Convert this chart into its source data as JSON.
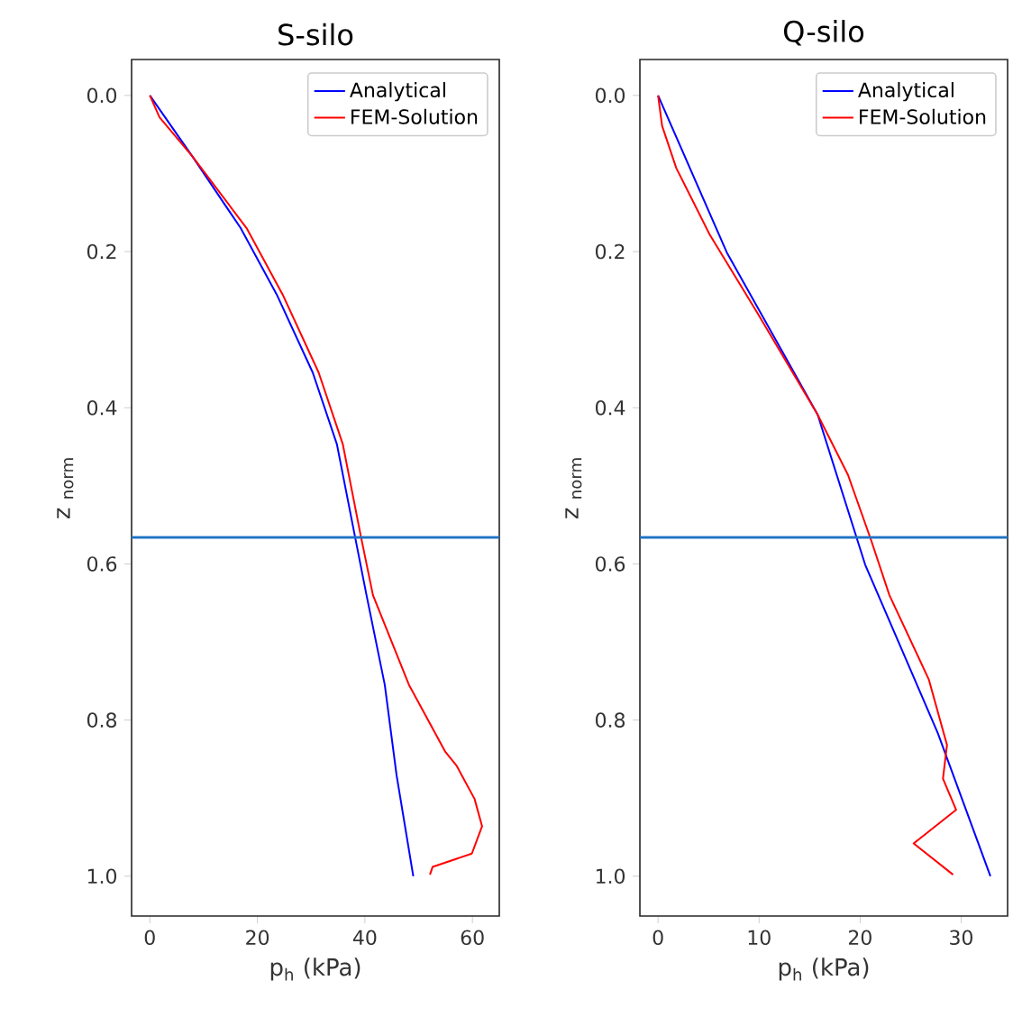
{
  "chart_data": [
    {
      "type": "line",
      "title": "S-silo",
      "xlabel": "p$_{h}$ (kPa)",
      "ylabel": "z $_{norm}$",
      "xlim": [
        -3.4,
        65
      ],
      "xticks": [
        0,
        20,
        40,
        60
      ],
      "ylim": [
        1.051,
        -0.046
      ],
      "yticks": [
        {
          "value": 0,
          "label": "0.0"
        },
        {
          "value": 0.2,
          "label": "0.2"
        },
        {
          "value": 0.4,
          "label": "0.4"
        },
        {
          "value": 0.6,
          "label": "0.6"
        },
        {
          "value": 0.8,
          "label": "0.8"
        },
        {
          "value": 1.0,
          "label": "1.0"
        }
      ],
      "legend": "top right",
      "grid": false,
      "ref_lines": [
        {
          "axis": "y",
          "value": 0.566,
          "color": "#1f72c4"
        }
      ],
      "series": [
        {
          "name": "Analytical",
          "color": "#0000ff",
          "x": [
            0,
            7.9,
            16.9,
            23.6,
            30.3,
            34.8,
            38.1,
            40.3,
            43.7,
            45.9,
            49.0
          ],
          "values": [
            0,
            0.078,
            0.17,
            0.255,
            0.355,
            0.447,
            0.563,
            0.64,
            0.755,
            0.871,
            1.0
          ]
        },
        {
          "name": "FEM-Solution",
          "color": "#ff0000",
          "x": [
            0,
            1.8,
            7.9,
            18.0,
            24.7,
            31.4,
            35.9,
            39.2,
            41.5,
            48.2,
            54.9,
            57.1,
            60.4,
            61.8,
            59.9,
            52.6,
            52.1
          ],
          "values": [
            0,
            0.028,
            0.078,
            0.17,
            0.255,
            0.355,
            0.447,
            0.563,
            0.64,
            0.755,
            0.84,
            0.859,
            0.901,
            0.936,
            0.971,
            0.988,
            0.998
          ]
        }
      ]
    },
    {
      "type": "line",
      "title": "Q-silo",
      "xlabel": "p$_{h}$ (kPa)",
      "ylabel": "z $_{norm}$",
      "xlim": [
        -1.8,
        34.6
      ],
      "xticks": [
        0,
        10,
        20,
        30
      ],
      "ylim": [
        1.051,
        -0.046
      ],
      "yticks": [
        {
          "value": 0,
          "label": "0.0"
        },
        {
          "value": 0.2,
          "label": "0.2"
        },
        {
          "value": 0.4,
          "label": "0.4"
        },
        {
          "value": 0.6,
          "label": "0.6"
        },
        {
          "value": 0.8,
          "label": "0.8"
        },
        {
          "value": 1.0,
          "label": "1.0"
        }
      ],
      "legend": "top right",
      "grid": false,
      "ref_lines": [
        {
          "axis": "y",
          "value": 0.566,
          "color": "#1f72c4"
        }
      ],
      "series": [
        {
          "name": "Analytical",
          "color": "#0000ff",
          "x": [
            0,
            6.8,
            15.8,
            20.5,
            27.7,
            32.9
          ],
          "values": [
            0,
            0.201,
            0.409,
            0.601,
            0.817,
            1.0
          ]
        },
        {
          "name": "FEM-Solution",
          "color": "#ff0000",
          "x": [
            0,
            0.4,
            1.8,
            5.1,
            9.8,
            15.8,
            18.8,
            21.1,
            22.9,
            26.8,
            28.6,
            28.2,
            29.5,
            25.3,
            29.2
          ],
          "values": [
            0,
            0.039,
            0.093,
            0.178,
            0.278,
            0.409,
            0.486,
            0.57,
            0.64,
            0.748,
            0.832,
            0.875,
            0.915,
            0.958,
            0.998
          ]
        }
      ]
    }
  ]
}
